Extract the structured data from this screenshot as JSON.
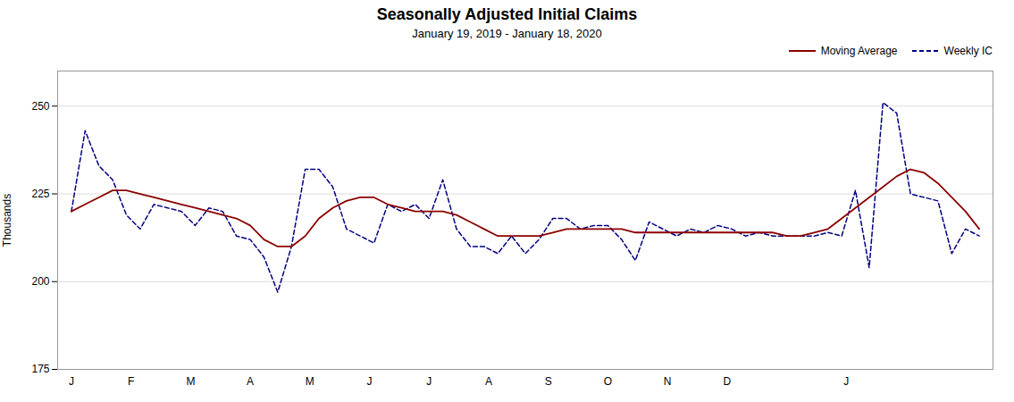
{
  "chart_data": {
    "type": "line",
    "title": "Seasonally Adjusted Initial Claims",
    "subtitle": "January 19, 2019 - January 18, 2020",
    "ylabel": "Thousands",
    "x": [
      0,
      1,
      2,
      3,
      4,
      5,
      6,
      7,
      8,
      9,
      10,
      11,
      12,
      13,
      14,
      15,
      16,
      17,
      18,
      19,
      20,
      21,
      22,
      23,
      24,
      25,
      26,
      27,
      28,
      29,
      30,
      31,
      32,
      33,
      34,
      35,
      36,
      37,
      38,
      39,
      40,
      41,
      42,
      43,
      44,
      45,
      46,
      47,
      48,
      49,
      50,
      51,
      52,
      53,
      54,
      55,
      56,
      57,
      58,
      59,
      60,
      61,
      62,
      63,
      64,
      65,
      66
    ],
    "xlim": [
      -1,
      67
    ],
    "xticks": [
      {
        "value": 0,
        "label": "J"
      },
      {
        "value": 4.33,
        "label": "F"
      },
      {
        "value": 8.67,
        "label": "M"
      },
      {
        "value": 13,
        "label": "A"
      },
      {
        "value": 17.33,
        "label": "M"
      },
      {
        "value": 21.67,
        "label": "J"
      },
      {
        "value": 26,
        "label": "J"
      },
      {
        "value": 30.33,
        "label": "A"
      },
      {
        "value": 34.67,
        "label": "S"
      },
      {
        "value": 39,
        "label": "O"
      },
      {
        "value": 43.33,
        "label": "N"
      },
      {
        "value": 47.67,
        "label": "D"
      },
      {
        "value": 56.33,
        "label": "J"
      }
    ],
    "ylim": [
      175,
      260
    ],
    "yticks": [
      175,
      200,
      225,
      250
    ],
    "grid": true,
    "legend": "upper right",
    "series": [
      {
        "name": "Moving Average",
        "color": "#8B0000",
        "line_style": "solid",
        "values": [
          220,
          222,
          224,
          226,
          226,
          225,
          224,
          223,
          222,
          221,
          220,
          219,
          218,
          216,
          212,
          210,
          210,
          213,
          218,
          221,
          223,
          224,
          224,
          222,
          221,
          220,
          220,
          220,
          219,
          217,
          215,
          213,
          213,
          213,
          213,
          214,
          215,
          215,
          215,
          215,
          215,
          214,
          214,
          214,
          214,
          214,
          214,
          214,
          214,
          214,
          214,
          214,
          213,
          213,
          214,
          215,
          218,
          221,
          224,
          227,
          230,
          232,
          231,
          228,
          224,
          220,
          215
        ]
      },
      {
        "name": "Weekly IC",
        "color": "#000080",
        "line_style": "dashed",
        "values": [
          220,
          243,
          233,
          229,
          219,
          215,
          222,
          221,
          220,
          216,
          221,
          220,
          213,
          212,
          207,
          197,
          210,
          232,
          232,
          227,
          215,
          213,
          211,
          222,
          220,
          222,
          218,
          229,
          215,
          210,
          210,
          208,
          213,
          208,
          212,
          218,
          218,
          215,
          216,
          216,
          212,
          206,
          217,
          215,
          213,
          215,
          214,
          216,
          215,
          213,
          214,
          213,
          213,
          213,
          213,
          214,
          213,
          226,
          204,
          251,
          248,
          225,
          224,
          223,
          208,
          215,
          213
        ]
      }
    ]
  }
}
